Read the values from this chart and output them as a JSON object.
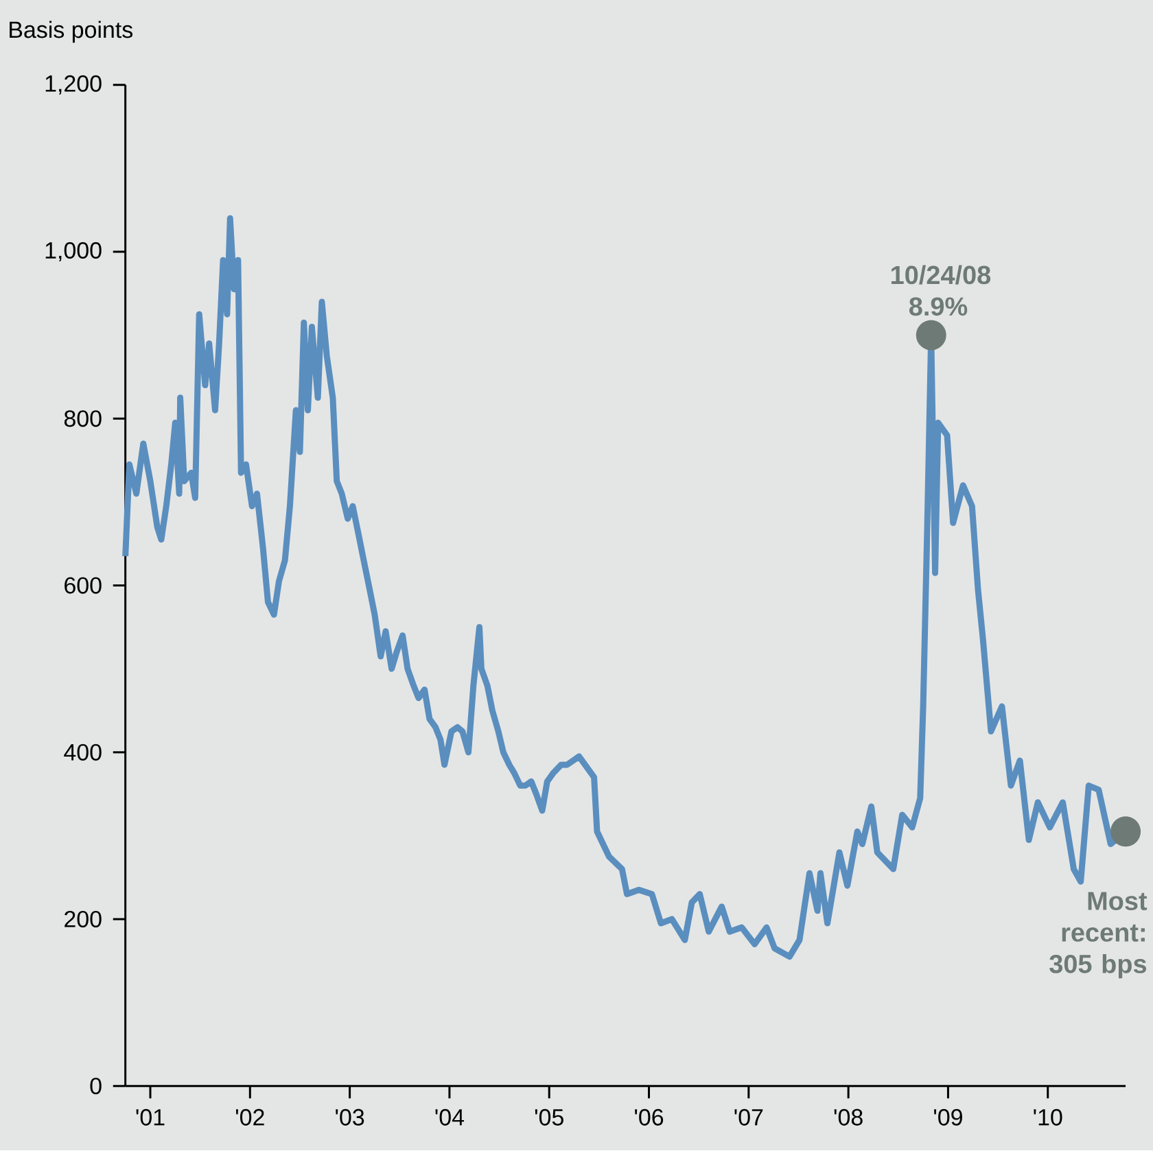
{
  "chart_data": {
    "type": "line",
    "ylabel": "Basis points",
    "xlim": [
      2000.75,
      2010.78
    ],
    "ylim": [
      0,
      1200
    ],
    "xticks": [
      {
        "value": 2001,
        "label": "'01"
      },
      {
        "value": 2002,
        "label": "'02"
      },
      {
        "value": 2003,
        "label": "'03"
      },
      {
        "value": 2004,
        "label": "'04"
      },
      {
        "value": 2005,
        "label": "'05"
      },
      {
        "value": 2006,
        "label": "'06"
      },
      {
        "value": 2007,
        "label": "'07"
      },
      {
        "value": 2008,
        "label": "'08"
      },
      {
        "value": 2009,
        "label": "'09"
      },
      {
        "value": 2010,
        "label": "'10"
      }
    ],
    "yticks": [
      {
        "value": 0,
        "label": "0"
      },
      {
        "value": 200,
        "label": "200"
      },
      {
        "value": 400,
        "label": "400"
      },
      {
        "value": 600,
        "label": "600"
      },
      {
        "value": 800,
        "label": "800"
      },
      {
        "value": 1000,
        "label": "1,000"
      },
      {
        "value": 1200,
        "label": "1,200"
      }
    ],
    "marker": "none",
    "line_style": "solid",
    "series": [
      {
        "color": "#5a8ebf",
        "x": [
          2000.75,
          2000.79,
          2000.86,
          2000.93,
          2001.0,
          2001.07,
          2001.11,
          2001.16,
          2001.21,
          2001.25,
          2001.29,
          2001.3,
          2001.34,
          2001.41,
          2001.45,
          2001.49,
          2001.55,
          2001.59,
          2001.65,
          2001.69,
          2001.73,
          2001.77,
          2001.8,
          2001.84,
          2001.88,
          2001.91,
          2001.96,
          2002.02,
          2002.07,
          2002.13,
          2002.18,
          2002.24,
          2002.29,
          2002.35,
          2002.4,
          2002.46,
          2002.5,
          2002.54,
          2002.58,
          2002.62,
          2002.68,
          2002.72,
          2002.77,
          2002.83,
          2002.87,
          2002.92,
          2002.98,
          2003.03,
          2003.09,
          2003.14,
          2003.2,
          2003.25,
          2003.31,
          2003.36,
          2003.42,
          2003.47,
          2003.53,
          2003.58,
          2003.64,
          2003.69,
          2003.75,
          2003.8,
          2003.86,
          2003.91,
          2003.95,
          2004.02,
          2004.08,
          2004.13,
          2004.19,
          2004.24,
          2004.3,
          2004.32,
          2004.38,
          2004.43,
          2004.49,
          2004.54,
          2004.6,
          2004.65,
          2004.71,
          2004.76,
          2004.82,
          2004.87,
          2004.93,
          2004.98,
          2005.04,
          2005.12,
          2005.18,
          2005.3,
          2005.45,
          2005.48,
          2005.6,
          2005.73,
          2005.78,
          2005.9,
          2006.03,
          2006.12,
          2006.23,
          2006.36,
          2006.43,
          2006.51,
          2006.6,
          2006.73,
          2006.81,
          2006.93,
          2007.06,
          2007.18,
          2007.26,
          2007.41,
          2007.51,
          2007.61,
          2007.69,
          2007.72,
          2007.79,
          2007.91,
          2007.99,
          2008.09,
          2008.14,
          2008.23,
          2008.29,
          2008.45,
          2008.54,
          2008.64,
          2008.72,
          2008.75,
          2008.79,
          2008.83,
          2008.87,
          2008.9,
          2008.99,
          2009.05,
          2009.15,
          2009.24,
          2009.3,
          2009.35,
          2009.43,
          2009.54,
          2009.63,
          2009.72,
          2009.81,
          2009.9,
          2010.02,
          2010.15,
          2010.26,
          2010.33,
          2010.41,
          2010.51,
          2010.63,
          2010.78
        ],
        "values": [
          635,
          745,
          710,
          770,
          725,
          670,
          655,
          695,
          745,
          795,
          710,
          825,
          725,
          735,
          705,
          925,
          840,
          890,
          810,
          890,
          990,
          925,
          1040,
          955,
          990,
          735,
          745,
          695,
          710,
          645,
          580,
          565,
          605,
          630,
          695,
          810,
          760,
          915,
          810,
          910,
          825,
          940,
          875,
          825,
          725,
          710,
          680,
          695,
          660,
          630,
          595,
          565,
          515,
          545,
          500,
          520,
          540,
          500,
          480,
          465,
          475,
          440,
          430,
          415,
          385,
          425,
          430,
          425,
          400,
          480,
          550,
          500,
          480,
          450,
          425,
          400,
          385,
          375,
          360,
          360,
          365,
          350,
          330,
          365,
          375,
          385,
          385,
          395,
          370,
          305,
          275,
          260,
          230,
          235,
          230,
          195,
          200,
          175,
          220,
          230,
          185,
          215,
          185,
          190,
          170,
          190,
          165,
          155,
          175,
          255,
          210,
          255,
          195,
          280,
          240,
          305,
          290,
          335,
          280,
          260,
          325,
          310,
          345,
          455,
          665,
          900,
          615,
          795,
          780,
          675,
          720,
          695,
          595,
          535,
          425,
          455,
          360,
          390,
          295,
          340,
          310,
          340,
          260,
          245,
          360,
          355,
          290,
          305
        ]
      }
    ],
    "annotations": [
      {
        "text": "10/24/08 8.9%",
        "x": 2008.83,
        "y": 900
      },
      {
        "text": "Most recent: 305 bps",
        "x": 2010.78,
        "y": 305
      }
    ]
  }
}
